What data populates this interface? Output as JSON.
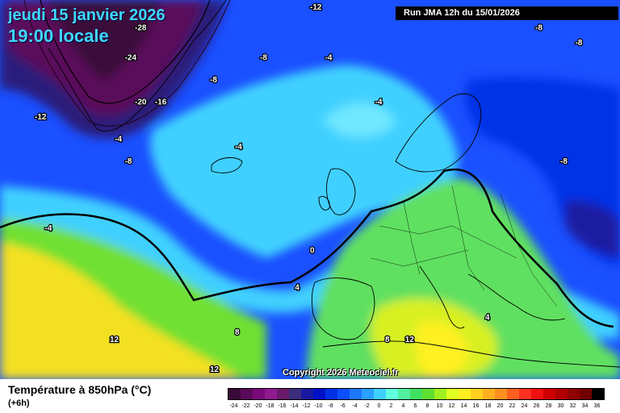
{
  "header": {
    "date": "jeudi 15 janvier 2026",
    "time": "19:00 locale",
    "run": "Run JMA 12h du 15/01/2026"
  },
  "footer": {
    "variable": "Température à 850hPa (°C)",
    "offset": "(+6h)",
    "copyright": "Copyright 2026 Meteociel.fr"
  },
  "legend": {
    "labels": [
      "-24",
      "-22",
      "-20",
      "-18",
      "-16",
      "-14",
      "-12",
      "-10",
      "-8",
      "-6",
      "-4",
      "-2",
      "0",
      "2",
      "4",
      "6",
      "8",
      "10",
      "12",
      "14",
      "16",
      "18",
      "20",
      "22",
      "24",
      "26",
      "28",
      "30",
      "32",
      "34",
      "36"
    ],
    "colors": [
      "#3a0a3a",
      "#5a0a5a",
      "#7a0a7a",
      "#8e1a8e",
      "#6a1a6a",
      "#3c2c7c",
      "#1a1aa0",
      "#0010c8",
      "#0030e6",
      "#0a50ff",
      "#1e78ff",
      "#2aa0ff",
      "#40d0ff",
      "#60ffe0",
      "#50f0a0",
      "#40e060",
      "#60e030",
      "#a0f020",
      "#e0ff20",
      "#fff020",
      "#ffd020",
      "#ffb020",
      "#ff9020",
      "#ff6020",
      "#ff3020",
      "#f01010",
      "#d00000",
      "#b00000",
      "#900000",
      "#700000",
      "#000000"
    ]
  },
  "map_labels": [
    {
      "text": "-12",
      "lon": -5,
      "lat": 76
    },
    {
      "text": "-28",
      "lon": -40,
      "lat": 72
    },
    {
      "text": "-24",
      "lon": -42,
      "lat": 68
    },
    {
      "text": "-20",
      "lon": -40,
      "lat": 62
    },
    {
      "text": "-16",
      "lon": -36,
      "lat": 62
    },
    {
      "text": "-12",
      "lon": -60,
      "lat": 60
    },
    {
      "text": "-4",
      "lon": -44,
      "lat": 57
    },
    {
      "text": "-8",
      "lon": -42,
      "lat": 54
    },
    {
      "text": "-8",
      "lon": -25,
      "lat": 65
    },
    {
      "text": "-8",
      "lon": -15,
      "lat": 68
    },
    {
      "text": "-4",
      "lon": -2,
      "lat": 68
    },
    {
      "text": "-4",
      "lon": 8,
      "lat": 62
    },
    {
      "text": "-4",
      "lon": -20,
      "lat": 56
    },
    {
      "text": "-8",
      "lon": 40,
      "lat": 72
    },
    {
      "text": "-8",
      "lon": 48,
      "lat": 70
    },
    {
      "text": "-8",
      "lon": 45,
      "lat": 54
    },
    {
      "text": "-4",
      "lon": -58,
      "lat": 45
    },
    {
      "text": "0",
      "lon": -5,
      "lat": 42
    },
    {
      "text": "4",
      "lon": -8,
      "lat": 37
    },
    {
      "text": "12",
      "lon": -45,
      "lat": 30
    },
    {
      "text": "8",
      "lon": -20,
      "lat": 31
    },
    {
      "text": "8",
      "lon": 10,
      "lat": 30
    },
    {
      "text": "12",
      "lon": 14,
      "lat": 30
    },
    {
      "text": "4",
      "lon": 30,
      "lat": 33
    },
    {
      "text": "12",
      "lon": -25,
      "lat": 26
    }
  ]
}
